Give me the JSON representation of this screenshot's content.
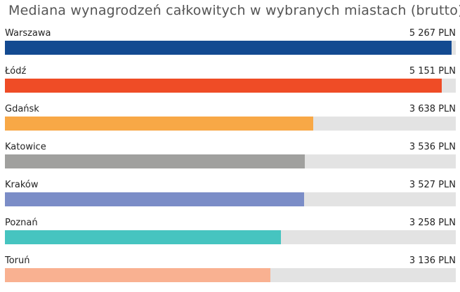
{
  "chart_data": {
    "type": "bar",
    "orientation": "horizontal",
    "title": "Mediana wynagrodzeń całkowitych w wybranych miastach (brutto)",
    "unit": "PLN",
    "xlim": [
      0,
      5320
    ],
    "categories": [
      "Warszawa",
      "Łódź",
      "Gdańsk",
      "Katowice",
      "Kraków",
      "Poznań",
      "Toruń"
    ],
    "values": [
      5267,
      5151,
      3638,
      3536,
      3527,
      3258,
      3136
    ],
    "value_labels": [
      "5 267 PLN",
      "5 151 PLN",
      "3 638 PLN",
      "3 536 PLN",
      "3 527 PLN",
      "3 258 PLN",
      "3 136 PLN"
    ],
    "colors": [
      "#134a91",
      "#ef4c26",
      "#f8a846",
      "#a0a09e",
      "#7b8dc7",
      "#46c4c0",
      "#f9b191"
    ],
    "track_color": "#e3e3e3",
    "grid": false,
    "legend": "none"
  }
}
